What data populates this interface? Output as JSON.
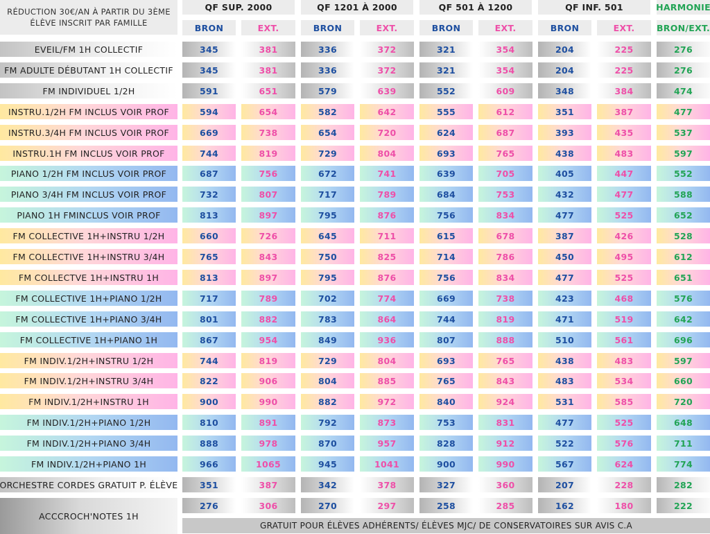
{
  "intro": {
    "line1": "RÉDUCTION 30€/AN À PARTIR DU 3ÈME",
    "line2": "ÉLÈVE INSCRIT PAR FAMILLE"
  },
  "headers": [
    "QF SUP. 2000",
    "QF 1201 À 2000",
    "QF 501 À 1200",
    "QF INF. 501",
    "HARMONIE"
  ],
  "subheaders": [
    "BRON",
    "EXT.",
    "BRON",
    "EXT.",
    "BRON",
    "EXT.",
    "BRON",
    "EXT.",
    "BRON/EXT."
  ],
  "rows": [
    {
      "label": "EVEIL/FM 1H COLLECTIF",
      "style": "grey",
      "values": [
        "345",
        "381",
        "336",
        "372",
        "321",
        "354",
        "204",
        "225",
        "276"
      ]
    },
    {
      "label": "FM ADULTE DÉBUTANT 1H COLLECTIF",
      "style": "grey",
      "values": [
        "345",
        "381",
        "336",
        "372",
        "321",
        "354",
        "204",
        "225",
        "276"
      ]
    },
    {
      "label": "FM INDIVIDUEL 1/2H",
      "style": "grey",
      "values": [
        "591",
        "651",
        "579",
        "639",
        "552",
        "609",
        "348",
        "384",
        "474"
      ]
    },
    {
      "label": "INSTRU.1/2H FM INCLUS VOIR PROF",
      "style": "yp",
      "values": [
        "594",
        "654",
        "582",
        "642",
        "555",
        "612",
        "351",
        "387",
        "477"
      ]
    },
    {
      "label": "INSTRU.3/4H FM INCLUS VOIR PROF",
      "style": "yp",
      "values": [
        "669",
        "738",
        "654",
        "720",
        "624",
        "687",
        "393",
        "435",
        "537"
      ]
    },
    {
      "label": "INSTRU.1H FM INCLUS VOIR PROF",
      "style": "yp",
      "values": [
        "744",
        "819",
        "729",
        "804",
        "693",
        "765",
        "438",
        "483",
        "597"
      ]
    },
    {
      "label": "PIANO 1/2H FM INCLUS VOIR PROF",
      "style": "gb",
      "values": [
        "687",
        "756",
        "672",
        "741",
        "639",
        "705",
        "405",
        "447",
        "552"
      ]
    },
    {
      "label": "PIANO 3/4H FM INCLUS VOIR PROF",
      "style": "gb",
      "values": [
        "732",
        "807",
        "717",
        "789",
        "684",
        "753",
        "432",
        "477",
        "588"
      ]
    },
    {
      "label": "PIANO 1H FMINCLUS VOIR PROF",
      "style": "gb",
      "values": [
        "813",
        "897",
        "795",
        "876",
        "756",
        "834",
        "477",
        "525",
        "652"
      ]
    },
    {
      "label": "FM COLLECTIVE 1H+INSTRU 1/2H",
      "style": "yp",
      "values": [
        "660",
        "726",
        "645",
        "711",
        "615",
        "678",
        "387",
        "426",
        "528"
      ]
    },
    {
      "label": "FM COLLECTIVE 1H+INSTRU 3/4H",
      "style": "yp",
      "values": [
        "765",
        "843",
        "750",
        "825",
        "714",
        "786",
        "450",
        "495",
        "612"
      ]
    },
    {
      "label": "FM COLLECTVE 1H+INSTRU 1H",
      "style": "yp",
      "values": [
        "813",
        "897",
        "795",
        "876",
        "756",
        "834",
        "477",
        "525",
        "651"
      ]
    },
    {
      "label": "FM COLLECTIVE 1H+PIANO 1/2H",
      "style": "gb",
      "values": [
        "717",
        "789",
        "702",
        "774",
        "669",
        "738",
        "423",
        "468",
        "576"
      ]
    },
    {
      "label": "FM COLLECTIVE 1H+PIANO 3/4H",
      "style": "gb",
      "values": [
        "801",
        "882",
        "783",
        "864",
        "744",
        "819",
        "471",
        "519",
        "642"
      ]
    },
    {
      "label": "FM COLLECTIVE 1H+PIANO 1H",
      "style": "gb",
      "values": [
        "867",
        "954",
        "849",
        "936",
        "807",
        "888",
        "510",
        "561",
        "696"
      ]
    },
    {
      "label": "FM INDIV.1/2H+INSTRU 1/2H",
      "style": "yp",
      "values": [
        "744",
        "819",
        "729",
        "804",
        "693",
        "765",
        "438",
        "483",
        "597"
      ]
    },
    {
      "label": "FM INDIV.1/2H+INSTRU 3/4H",
      "style": "yp",
      "values": [
        "822",
        "906",
        "804",
        "885",
        "765",
        "843",
        "483",
        "534",
        "660"
      ]
    },
    {
      "label": "FM INDIV.1/2H+INSTRU 1H",
      "style": "yp",
      "values": [
        "900",
        "990",
        "882",
        "972",
        "840",
        "924",
        "531",
        "585",
        "720"
      ]
    },
    {
      "label": "FM INDIV.1/2H+PIANO 1/2H",
      "style": "gb",
      "values": [
        "810",
        "891",
        "792",
        "873",
        "753",
        "831",
        "477",
        "525",
        "648"
      ]
    },
    {
      "label": "FM INDIV.1/2H+PIANO 3/4H",
      "style": "gb",
      "values": [
        "888",
        "978",
        "870",
        "957",
        "828",
        "912",
        "522",
        "576",
        "711"
      ]
    },
    {
      "label": "FM INDIV.1/2H+PIANO 1H",
      "style": "gb",
      "values": [
        "966",
        "1065",
        "945",
        "1041",
        "900",
        "990",
        "567",
        "624",
        "774"
      ]
    },
    {
      "label": "ORCHESTRE CORDES GRATUIT P. ÉLÈVE",
      "style": "grey",
      "values": [
        "351",
        "387",
        "342",
        "378",
        "327",
        "360",
        "207",
        "228",
        "282"
      ]
    }
  ],
  "accroch": {
    "label": "ACCCROCH'NOTES 1H",
    "values": [
      "276",
      "306",
      "270",
      "297",
      "258",
      "285",
      "162",
      "180",
      "222"
    ],
    "footer": "GRATUIT POUR ÉLÈVES ADHÉRENTS/ ÉLÈVES MJC/ DE CONSERVATOIRES SUR AVIS C.A"
  }
}
